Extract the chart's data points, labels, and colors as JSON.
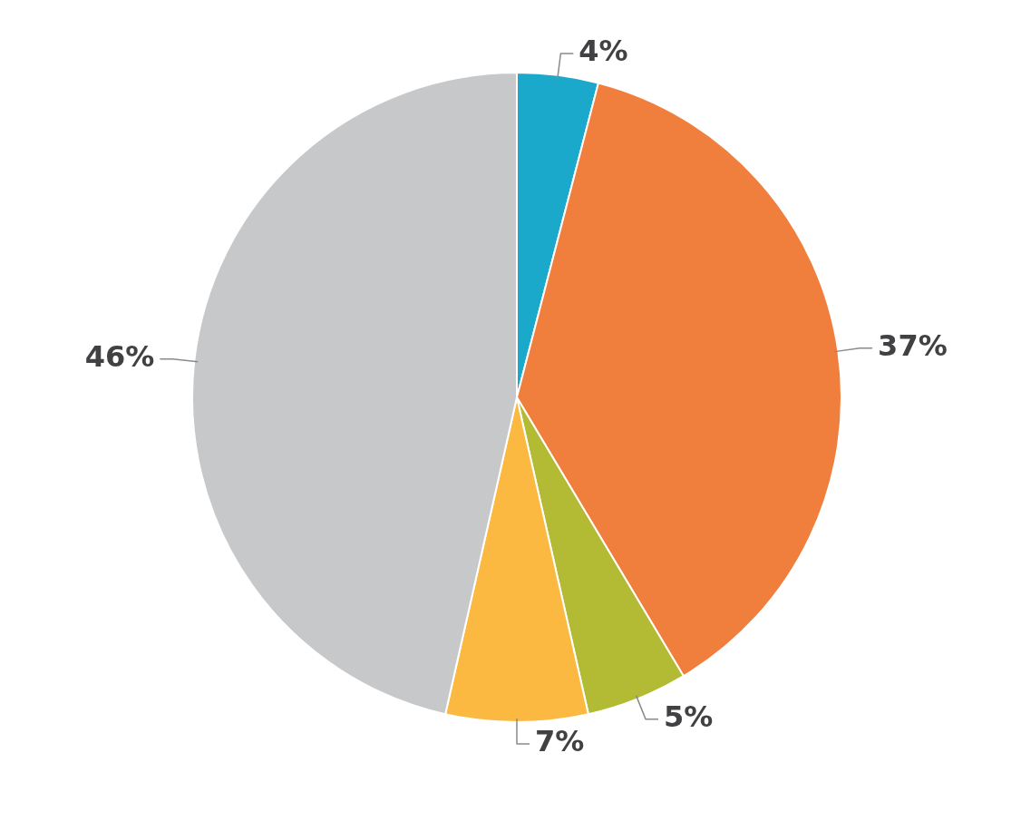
{
  "chart_data": {
    "type": "pie",
    "categories": [
      null,
      null,
      null,
      null,
      null
    ],
    "values": [
      4,
      37,
      5,
      7,
      46
    ],
    "colors": [
      "#1aa9cb",
      "#f07e3c",
      "#b3bb34",
      "#fbb942",
      "#c7c8ca"
    ],
    "value_labels": [
      "4%",
      "37%",
      "5%",
      "7%",
      "46%"
    ],
    "legend": false
  }
}
